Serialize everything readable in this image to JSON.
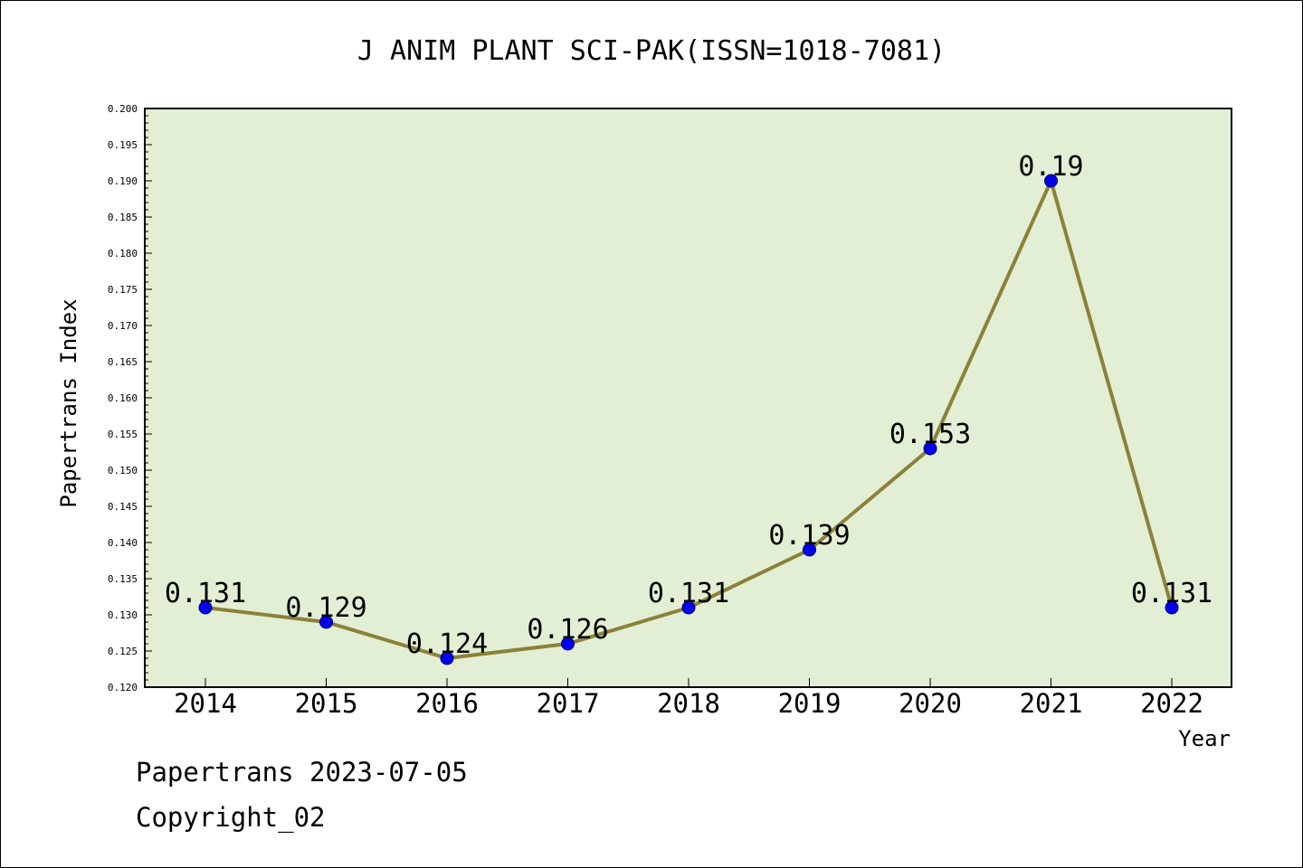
{
  "chart_data": {
    "type": "line",
    "title": "J ANIM PLANT SCI-PAK(ISSN=1018-7081)",
    "xlabel": "Year",
    "ylabel": "Papertrans Index",
    "categories": [
      "2014",
      "2015",
      "2016",
      "2017",
      "2018",
      "2019",
      "2020",
      "2021",
      "2022"
    ],
    "values": [
      0.131,
      0.129,
      0.124,
      0.126,
      0.131,
      0.139,
      0.153,
      0.19,
      0.131
    ],
    "data_labels": [
      "0.131",
      "0.129",
      "0.124",
      "0.126",
      "0.131",
      "0.139",
      "0.153",
      "0.19",
      "0.131"
    ],
    "ylim": [
      0.12,
      0.2
    ],
    "y_ticks": [
      "0.120",
      "0.125",
      "0.130",
      "0.135",
      "0.140",
      "0.145",
      "0.150",
      "0.155",
      "0.160",
      "0.165",
      "0.170",
      "0.175",
      "0.180",
      "0.185",
      "0.190",
      "0.195",
      "0.200"
    ],
    "grid": false,
    "legend": "none",
    "colors": {
      "plot_background": "#e2efd4",
      "line": "#8b8139",
      "marker": "#0000ee",
      "marker_edge": "#000066"
    }
  },
  "footer": {
    "date_line": "Papertrans 2023-07-05",
    "copyright_line": "Copyright_02"
  }
}
